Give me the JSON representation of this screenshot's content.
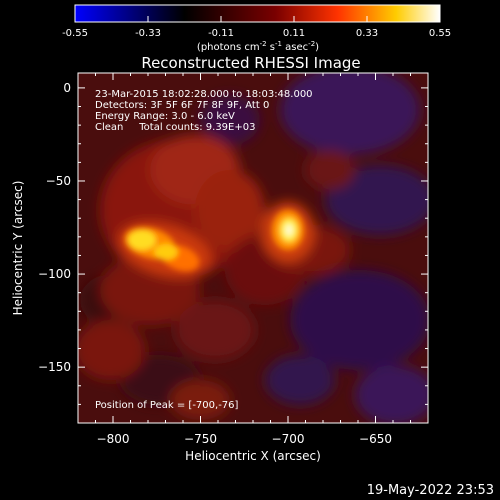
{
  "colorbar": {
    "ticks": [
      "-0.55",
      "-0.33",
      "-0.11",
      "0.11",
      "0.33",
      "0.55"
    ],
    "unit_label_parts": {
      "prefix": "(photons cm",
      "exp1": "-2",
      "mid1": " s",
      "exp2": "-1",
      "mid2": " asec",
      "exp3": "-2",
      "suffix": ")"
    },
    "colors": [
      "#0000ff",
      "#000000",
      "#7a0000",
      "#ff3300",
      "#ffcc00",
      "#ffffff"
    ]
  },
  "chart_data": {
    "type": "heatmap",
    "title": "Reconstructed RHESSI Image",
    "xlabel": "Heliocentric X (arcsec)",
    "ylabel": "Heliocentric Y (arcsec)",
    "xlim": [
      -820,
      -620
    ],
    "ylim": [
      -180,
      8
    ],
    "x_ticks": [
      -800,
      -750,
      -700,
      -650
    ],
    "y_ticks": [
      0,
      -50,
      -100,
      -150
    ],
    "x_tick_labels": [
      "−800",
      "−750",
      "−700",
      "−650"
    ],
    "y_tick_labels": [
      "0",
      "−50",
      "−100",
      "−150"
    ],
    "annotations": [
      "23-Mar-2015 18:02:28.000 to 18:03:48.000",
      "Detectors: 3F 5F 6F 7F 8F 9F, Att 0",
      "Energy Range: 3.0 - 6.0 keV",
      "Clean     Total counts: 9.39E+03"
    ],
    "peak_label": "Position of Peak = [-700,-76]",
    "peak_position": [
      -700,
      -76
    ],
    "sources": [
      {
        "x": -700,
        "y": -76,
        "amplitude": 0.55
      },
      {
        "x": -780,
        "y": -82,
        "amplitude": 0.46
      },
      {
        "x": -762,
        "y": -92,
        "amplitude": 0.38
      }
    ]
  },
  "footer": {
    "timestamp": "19-May-2022 23:53"
  }
}
